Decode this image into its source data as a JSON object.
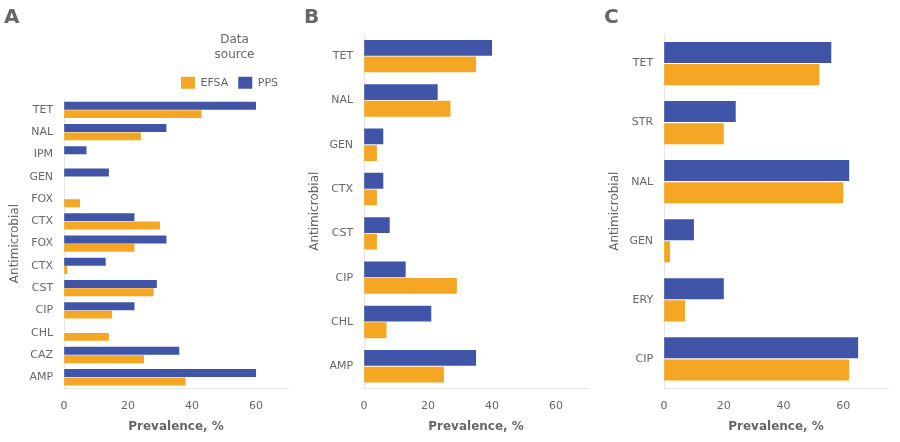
{
  "chart_data": [
    {
      "type": "bar",
      "orientation": "horizontal",
      "title": "A",
      "categories": [
        "TET",
        "NAL",
        "IPM",
        "GEN",
        "FOX",
        "CTX",
        "FOX",
        "CTX",
        "CST",
        "CIP",
        "CHL",
        "CAZ",
        "AMP"
      ],
      "series": [
        {
          "name": "PPS",
          "color": "#4055A8",
          "values": [
            60,
            32,
            7,
            14,
            0,
            22,
            32,
            13,
            29,
            22,
            0,
            36,
            60
          ]
        },
        {
          "name": "EFSA",
          "color": "#F5A623",
          "values": [
            43,
            24,
            0,
            0,
            5,
            30,
            22,
            1,
            28,
            15,
            14,
            25,
            38
          ]
        }
      ],
      "xlabel": "Prevalence, %",
      "ylabel": "Antimicrobial",
      "xlim": [
        0,
        70
      ],
      "xticks": [
        0,
        20,
        40,
        60
      ],
      "grid": false,
      "legend": "upper right",
      "legend_title": "Data\nsource"
    },
    {
      "type": "bar",
      "orientation": "horizontal",
      "title": "B",
      "categories": [
        "TET",
        "NAL",
        "GEN",
        "CTX",
        "CST",
        "CIP",
        "CHL",
        "AMP"
      ],
      "series": [
        {
          "name": "PPS",
          "color": "#4055A8",
          "values": [
            40,
            23,
            6,
            6,
            8,
            13,
            21,
            35
          ]
        },
        {
          "name": "EFSA",
          "color": "#F5A623",
          "values": [
            35,
            27,
            4,
            4,
            4,
            29,
            7,
            25
          ]
        }
      ],
      "xlabel": "Prevalence, %",
      "ylabel": "Antimicrobial",
      "xlim": [
        0,
        70
      ],
      "xticks": [
        0,
        20,
        40,
        60
      ],
      "grid": false
    },
    {
      "type": "bar",
      "orientation": "horizontal",
      "title": "C",
      "categories": [
        "TET",
        "STR",
        "NAL",
        "GEN",
        "ERY",
        "CIP"
      ],
      "series": [
        {
          "name": "PPS",
          "color": "#4055A8",
          "values": [
            56,
            24,
            62,
            10,
            20,
            65
          ]
        },
        {
          "name": "EFSA",
          "color": "#F5A623",
          "values": [
            52,
            20,
            60,
            2,
            7,
            62
          ]
        }
      ],
      "xlabel": "Prevalence, %",
      "ylabel": "Antimicrobial",
      "xlim": [
        0,
        75
      ],
      "xticks": [
        0,
        20,
        40,
        60
      ],
      "grid": false
    }
  ]
}
